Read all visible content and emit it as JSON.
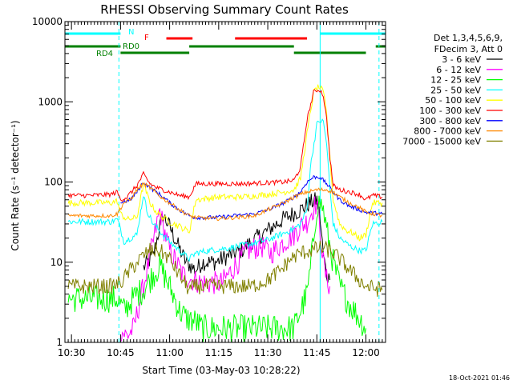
{
  "chart_data": {
    "type": "line",
    "title": "RHESSI Observing Summary Count Rates",
    "xlabel": "Start Time (03-May-03 10:28:22)",
    "ylabel": "Count Rate (s⁻¹ detector⁻¹)",
    "x_ticks": [
      "10:30",
      "10:45",
      "11:00",
      "11:15",
      "11:30",
      "11:45",
      "12:00"
    ],
    "x_range": [
      "10:28",
      "12:06"
    ],
    "y_scale": "log",
    "y_ticks": [
      "1",
      "10",
      "100",
      "1000",
      "10000"
    ],
    "y_range": [
      1,
      10000
    ],
    "legend_header": [
      "Det 1,3,4,5,6,9,",
      "FDecim 3, Att 0"
    ],
    "legend_position": "right",
    "series": [
      {
        "name": "3 - 6 keV",
        "color": "#000000",
        "points": [
          [
            "10:52",
            8.5
          ],
          [
            "10:55",
            12
          ],
          [
            "10:57",
            28
          ],
          [
            "10:58",
            38
          ],
          [
            "11:00",
            28
          ],
          [
            "11:02",
            18
          ],
          [
            "11:05",
            10
          ],
          [
            "11:08",
            8
          ],
          [
            "11:10",
            10
          ],
          [
            "11:14",
            10
          ],
          [
            "11:18",
            12
          ],
          [
            "11:22",
            14
          ],
          [
            "11:25",
            18
          ],
          [
            "11:30",
            25
          ],
          [
            "11:35",
            35
          ],
          [
            "11:40",
            45
          ],
          [
            "11:43",
            55
          ],
          [
            "11:45",
            60
          ],
          [
            "11:46",
            35
          ],
          [
            "11:47",
            12
          ],
          [
            "11:48",
            7
          ],
          [
            "11:49",
            6
          ]
        ]
      },
      {
        "name": "6 - 12 keV",
        "color": "#ff00ff",
        "points": [
          [
            "10:45",
            1.4
          ],
          [
            "10:47",
            1.2
          ],
          [
            "10:49",
            1.5
          ],
          [
            "10:52",
            5
          ],
          [
            "10:55",
            18
          ],
          [
            "10:57",
            45
          ],
          [
            "10:58",
            28
          ],
          [
            "11:00",
            14
          ],
          [
            "11:02",
            10
          ],
          [
            "11:04",
            7
          ],
          [
            "11:07",
            6
          ],
          [
            "11:10",
            5.5
          ],
          [
            "11:13",
            5.5
          ],
          [
            "11:16",
            5.5
          ],
          [
            "11:20",
            9
          ],
          [
            "11:24",
            14
          ],
          [
            "11:28",
            16
          ],
          [
            "11:31",
            13
          ],
          [
            "11:35",
            18
          ],
          [
            "11:38",
            22
          ],
          [
            "11:40",
            28
          ],
          [
            "11:42",
            32
          ],
          [
            "11:44",
            48
          ],
          [
            "11:45",
            55
          ],
          [
            "11:46",
            25
          ],
          [
            "11:47",
            10
          ],
          [
            "11:48",
            6
          ],
          [
            "11:49",
            5
          ]
        ]
      },
      {
        "name": "12 - 25 keV",
        "color": "#00ff00",
        "points": [
          [
            "10:29",
            3.5
          ],
          [
            "10:34",
            3.5
          ],
          [
            "10:38",
            3.5
          ],
          [
            "10:42",
            3.5
          ],
          [
            "10:44",
            3.5
          ],
          [
            "10:46",
            2.5
          ],
          [
            "10:50",
            4
          ],
          [
            "10:52",
            4.5
          ],
          [
            "10:55",
            7
          ],
          [
            "10:57",
            9
          ],
          [
            "10:59",
            6
          ],
          [
            "11:01",
            4
          ],
          [
            "11:03",
            2.5
          ],
          [
            "11:05",
            2
          ],
          [
            "11:08",
            1.8
          ],
          [
            "11:10",
            1.5
          ],
          [
            "11:38",
            1.5
          ],
          [
            "11:40",
            2.5
          ],
          [
            "11:42",
            4
          ],
          [
            "11:43",
            8
          ],
          [
            "11:44",
            20
          ],
          [
            "11:45",
            50
          ],
          [
            "11:46",
            55
          ],
          [
            "11:47",
            45
          ],
          [
            "11:48",
            25
          ],
          [
            "11:50",
            10
          ],
          [
            "11:52",
            5
          ],
          [
            "11:55",
            3
          ],
          [
            "11:58",
            2
          ],
          [
            "12:00",
            1.5
          ]
        ]
      },
      {
        "name": "25 - 50 keV",
        "color": "#00ffff",
        "points": [
          [
            "10:29",
            32
          ],
          [
            "10:36",
            32
          ],
          [
            "10:42",
            32
          ],
          [
            "10:44",
            34
          ],
          [
            "10:45",
            26
          ],
          [
            "10:46",
            18
          ],
          [
            "10:48",
            20
          ],
          [
            "10:50",
            22
          ],
          [
            "10:52",
            70
          ],
          [
            "10:53",
            45
          ],
          [
            "10:55",
            30
          ],
          [
            "10:58",
            22
          ],
          [
            "11:00",
            18
          ],
          [
            "11:03",
            14
          ],
          [
            "11:06",
            11
          ],
          [
            "11:08",
            13
          ],
          [
            "11:12",
            14
          ],
          [
            "11:18",
            15
          ],
          [
            "11:25",
            17
          ],
          [
            "11:30",
            19
          ],
          [
            "11:35",
            23
          ],
          [
            "11:38",
            26
          ],
          [
            "11:40",
            30
          ],
          [
            "11:42",
            45
          ],
          [
            "11:43",
            150
          ],
          [
            "11:45",
            520
          ],
          [
            "11:46",
            580
          ],
          [
            "11:47",
            560
          ],
          [
            "11:48",
            300
          ],
          [
            "11:49",
            80
          ],
          [
            "11:50",
            30
          ],
          [
            "11:52",
            20
          ],
          [
            "11:55",
            16
          ],
          [
            "11:58",
            14
          ],
          [
            "12:00",
            14
          ],
          [
            "12:02",
            30
          ],
          [
            "12:05",
            32
          ]
        ]
      },
      {
        "name": "50 - 100 keV",
        "color": "#ffff00",
        "points": [
          [
            "10:29",
            55
          ],
          [
            "10:36",
            55
          ],
          [
            "10:42",
            55
          ],
          [
            "10:44",
            58
          ],
          [
            "10:45",
            40
          ],
          [
            "10:47",
            34
          ],
          [
            "10:50",
            36
          ],
          [
            "10:52",
            95
          ],
          [
            "10:54",
            55
          ],
          [
            "10:56",
            42
          ],
          [
            "10:58",
            36
          ],
          [
            "11:00",
            32
          ],
          [
            "11:03",
            28
          ],
          [
            "11:06",
            24
          ],
          [
            "11:08",
            60
          ],
          [
            "11:15",
            65
          ],
          [
            "11:22",
            65
          ],
          [
            "11:30",
            70
          ],
          [
            "11:35",
            75
          ],
          [
            "11:38",
            80
          ],
          [
            "11:40",
            110
          ],
          [
            "11:42",
            400
          ],
          [
            "11:44",
            1300
          ],
          [
            "11:45",
            1500
          ],
          [
            "11:46",
            1500
          ],
          [
            "11:47",
            1300
          ],
          [
            "11:48",
            700
          ],
          [
            "11:49",
            200
          ],
          [
            "11:50",
            60
          ],
          [
            "11:52",
            30
          ],
          [
            "11:54",
            25
          ],
          [
            "11:56",
            23
          ],
          [
            "11:58",
            20
          ],
          [
            "12:00",
            22
          ],
          [
            "12:02",
            55
          ],
          [
            "12:05",
            55
          ]
        ]
      },
      {
        "name": "100 - 300 keV",
        "color": "#ff0000",
        "points": [
          [
            "10:29",
            68
          ],
          [
            "10:36",
            68
          ],
          [
            "10:42",
            70
          ],
          [
            "10:44",
            75
          ],
          [
            "10:45",
            60
          ],
          [
            "10:47",
            65
          ],
          [
            "10:50",
            90
          ],
          [
            "10:52",
            125
          ],
          [
            "10:54",
            95
          ],
          [
            "10:56",
            85
          ],
          [
            "10:58",
            80
          ],
          [
            "11:00",
            75
          ],
          [
            "11:03",
            68
          ],
          [
            "11:06",
            65
          ],
          [
            "11:08",
            95
          ],
          [
            "11:15",
            95
          ],
          [
            "11:22",
            95
          ],
          [
            "11:30",
            98
          ],
          [
            "11:35",
            100
          ],
          [
            "11:38",
            105
          ],
          [
            "11:40",
            150
          ],
          [
            "11:42",
            600
          ],
          [
            "11:44",
            1300
          ],
          [
            "11:45",
            1400
          ],
          [
            "11:46",
            1400
          ],
          [
            "11:47",
            1200
          ],
          [
            "11:48",
            600
          ],
          [
            "11:49",
            200
          ],
          [
            "11:50",
            90
          ],
          [
            "11:52",
            80
          ],
          [
            "11:55",
            75
          ],
          [
            "11:58",
            70
          ],
          [
            "12:00",
            60
          ],
          [
            "12:02",
            68
          ],
          [
            "12:05",
            65
          ]
        ]
      },
      {
        "name": "300 - 800 keV",
        "color": "#0000ff",
        "points": [
          [
            "10:45",
            55
          ],
          [
            "10:48",
            60
          ],
          [
            "10:50",
            75
          ],
          [
            "10:52",
            100
          ],
          [
            "10:54",
            85
          ],
          [
            "10:56",
            75
          ],
          [
            "10:58",
            65
          ],
          [
            "11:00",
            55
          ],
          [
            "11:03",
            45
          ],
          [
            "11:06",
            38
          ],
          [
            "11:08",
            36
          ],
          [
            "11:14",
            36
          ],
          [
            "11:20",
            38
          ],
          [
            "11:26",
            40
          ],
          [
            "11:30",
            45
          ],
          [
            "11:35",
            55
          ],
          [
            "11:38",
            65
          ],
          [
            "11:40",
            75
          ],
          [
            "11:42",
            100
          ],
          [
            "11:44",
            115
          ],
          [
            "11:46",
            115
          ],
          [
            "11:48",
            95
          ],
          [
            "11:50",
            75
          ],
          [
            "11:52",
            60
          ],
          [
            "11:55",
            50
          ],
          [
            "11:58",
            45
          ],
          [
            "12:00",
            42
          ],
          [
            "12:05",
            40
          ]
        ]
      },
      {
        "name": "800 - 7000 keV",
        "color": "#ff8800",
        "points": [
          [
            "10:29",
            38
          ],
          [
            "10:36",
            38
          ],
          [
            "10:42",
            38
          ],
          [
            "10:44",
            40
          ],
          [
            "10:46",
            55
          ],
          [
            "10:48",
            60
          ],
          [
            "10:50",
            80
          ],
          [
            "10:52",
            95
          ],
          [
            "10:54",
            85
          ],
          [
            "10:56",
            72
          ],
          [
            "10:58",
            62
          ],
          [
            "11:00",
            55
          ],
          [
            "11:03",
            45
          ],
          [
            "11:06",
            38
          ],
          [
            "11:08",
            36
          ],
          [
            "11:14",
            35
          ],
          [
            "11:20",
            36
          ],
          [
            "11:26",
            38
          ],
          [
            "11:30",
            45
          ],
          [
            "11:35",
            55
          ],
          [
            "11:38",
            65
          ],
          [
            "11:40",
            70
          ],
          [
            "11:42",
            75
          ],
          [
            "11:45",
            80
          ],
          [
            "11:48",
            80
          ],
          [
            "11:50",
            75
          ],
          [
            "11:52",
            65
          ],
          [
            "11:55",
            55
          ],
          [
            "11:58",
            48
          ],
          [
            "12:00",
            42
          ],
          [
            "12:05",
            38
          ]
        ]
      },
      {
        "name": "7000 - 15000 keV",
        "color": "#808000",
        "points": [
          [
            "10:29",
            5
          ],
          [
            "10:36",
            5
          ],
          [
            "10:42",
            5
          ],
          [
            "10:45",
            5.5
          ],
          [
            "10:48",
            8
          ],
          [
            "10:51",
            11
          ],
          [
            "10:54",
            14
          ],
          [
            "10:57",
            14
          ],
          [
            "11:00",
            11
          ],
          [
            "11:02",
            8
          ],
          [
            "11:04",
            6
          ],
          [
            "11:06",
            4.5
          ],
          [
            "11:08",
            5
          ],
          [
            "11:15",
            5
          ],
          [
            "11:25",
            5
          ],
          [
            "11:30",
            6
          ],
          [
            "11:34",
            8
          ],
          [
            "11:37",
            11
          ],
          [
            "11:40",
            13
          ],
          [
            "11:43",
            14
          ],
          [
            "11:46",
            15
          ],
          [
            "11:49",
            14
          ],
          [
            "11:52",
            11
          ],
          [
            "11:55",
            8
          ],
          [
            "11:58",
            6
          ],
          [
            "12:00",
            5
          ],
          [
            "12:05",
            4.5
          ]
        ]
      }
    ],
    "annotations": {
      "segment_labels": [
        {
          "text": "N",
          "color": "#00ffff"
        },
        {
          "text": "F",
          "color": "#ff0000"
        },
        {
          "text": "RD0",
          "color": "#008000"
        },
        {
          "text": "RD4",
          "color": "#008000"
        }
      ],
      "segments": [
        {
          "color": "#00ffff",
          "start": "10:28",
          "end": "10:45"
        },
        {
          "color": "#00ffff",
          "start": "11:46",
          "end": "12:06"
        },
        {
          "color": "#ff0000",
          "start": "10:59",
          "end": "11:07"
        },
        {
          "color": "#ff0000",
          "start": "11:20",
          "end": "11:42"
        },
        {
          "color": "#008000",
          "start": "10:28",
          "end": "10:45"
        },
        {
          "color": "#008000",
          "start": "10:45",
          "end": "11:06"
        },
        {
          "color": "#008000",
          "start": "11:06",
          "end": "11:38"
        },
        {
          "color": "#008000",
          "start": "11:38",
          "end": "12:00"
        },
        {
          "color": "#008000",
          "start": "12:03",
          "end": "12:06"
        }
      ],
      "markers_cyan_dashed": [
        "10:44.5",
        "12:04"
      ],
      "markers_cyan_solid": [
        "11:46"
      ]
    }
  },
  "timestamp": "18-Oct-2021 01:46",
  "colors": {
    "background": "#ffffff",
    "axes": "#000000"
  }
}
